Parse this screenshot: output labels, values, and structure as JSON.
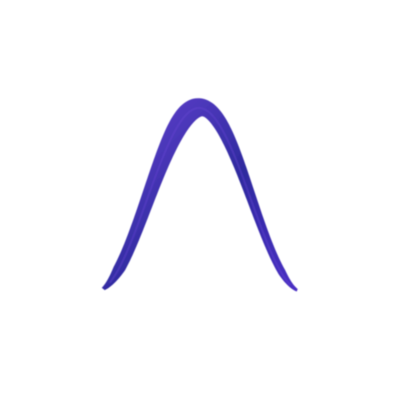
{
  "stroke": {
    "shape": "sine-wave-brush-stroke",
    "cycles": 1,
    "colors": {
      "light": "#6a45d6",
      "mid": "#4a2fc4",
      "dark": "#2e2a9e",
      "edge": "#3f2fb8"
    }
  }
}
